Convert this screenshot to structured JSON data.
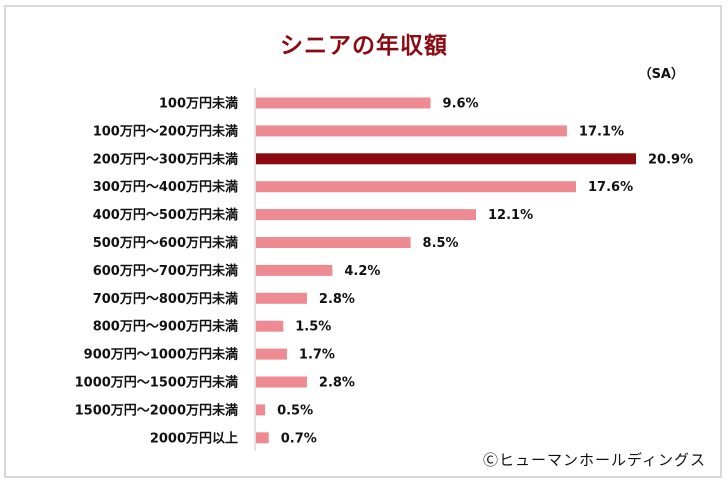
{
  "chart_data": {
    "type": "bar",
    "orientation": "horizontal",
    "title": "シニアの年収額",
    "unit_label": "（SA）",
    "xlabel": "",
    "ylabel": "",
    "xlim": [
      0,
      21
    ],
    "grid": false,
    "value_suffix": "%",
    "categories": [
      "100万円未満",
      "100万円～200万円未満",
      "200万円～300万円未満",
      "300万円～400万円未満",
      "400万円～500万円未満",
      "500万円～600万円未満",
      "600万円～700万円未満",
      "700万円～800万円未満",
      "800万円～900万円未満",
      "900万円～1000万円未満",
      "1000万円～1500万円未満",
      "1500万円～2000万円未満",
      "2000万円以上"
    ],
    "values": [
      9.6,
      17.1,
      20.9,
      17.6,
      12.1,
      8.5,
      4.2,
      2.8,
      1.5,
      1.7,
      2.8,
      0.5,
      0.7
    ],
    "value_labels": [
      "9.6%",
      "17.1%",
      "20.9%",
      "17.6%",
      "12.1%",
      "8.5%",
      "4.2%",
      "2.8%",
      "1.5%",
      "1.7%",
      "2.8%",
      "0.5%",
      "0.7%"
    ],
    "highlight_index": 2,
    "colors": {
      "default": "#ee8a92",
      "highlight": "#8b0a12",
      "axis": "#d9d9d9",
      "title": "#8b0a12"
    }
  },
  "credit": "Ⓒヒューマンホールディングス"
}
